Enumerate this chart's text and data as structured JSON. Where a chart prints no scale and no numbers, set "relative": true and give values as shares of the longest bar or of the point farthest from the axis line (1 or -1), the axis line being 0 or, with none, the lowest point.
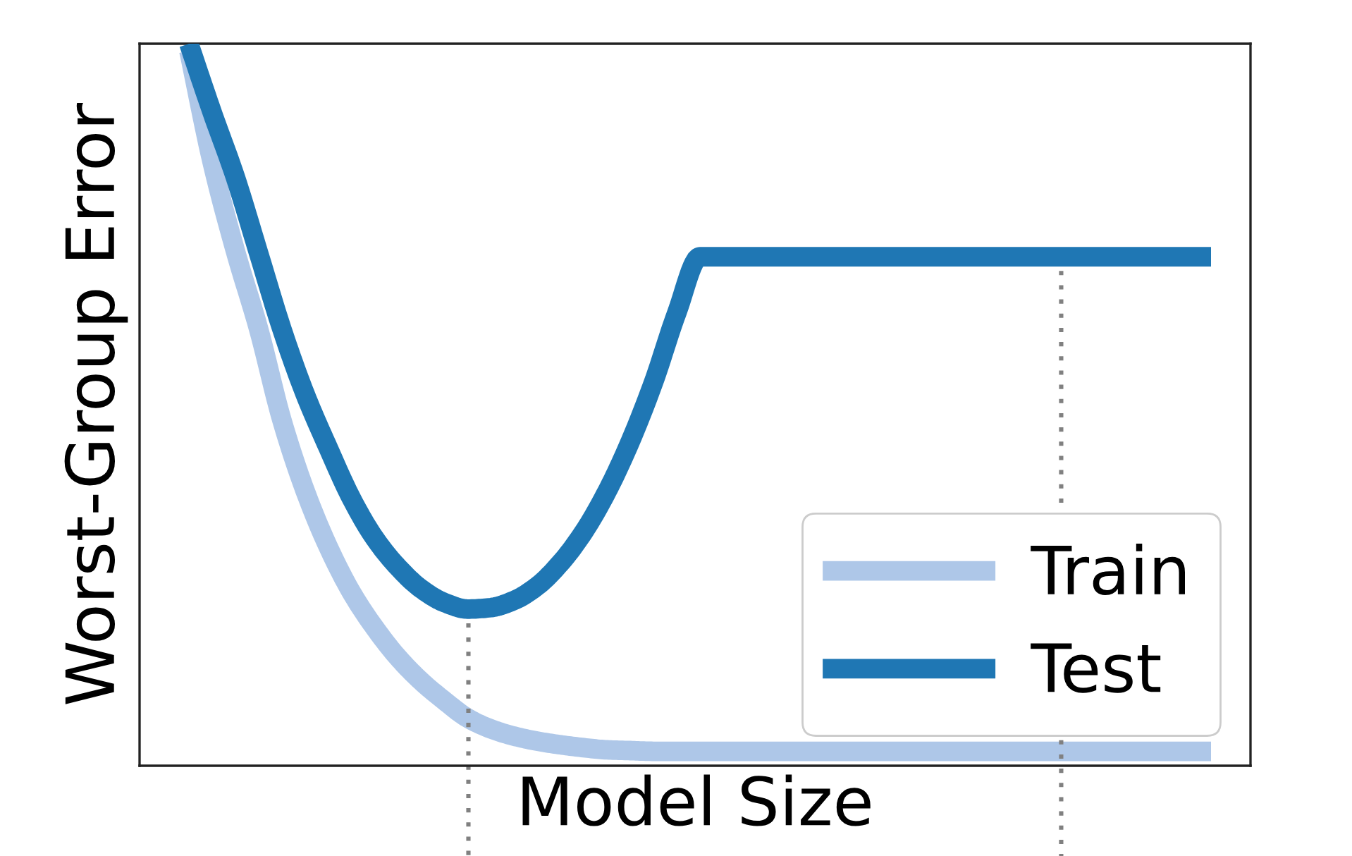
{
  "chart_data": {
    "type": "line",
    "xlabel": "Model Size",
    "ylabel": "Worst-Group Error",
    "relative": true,
    "line_style": "solid",
    "legend": "bottom right",
    "categories": [
      null,
      null,
      null,
      null,
      null,
      null,
      null,
      null,
      null,
      null,
      null,
      null,
      null,
      null,
      null,
      null,
      null,
      null,
      null,
      null,
      null,
      null,
      null,
      null,
      null,
      null,
      null,
      null,
      null,
      null,
      null,
      null,
      null,
      null,
      null,
      null,
      null,
      null,
      null,
      null,
      null,
      null,
      null,
      null,
      null
    ],
    "series": [
      {
        "name": "Train",
        "color": "#aec7e8",
        "values": [
          0.99,
          0.836,
          0.713,
          0.605,
          0.479,
          0.381,
          0.303,
          0.24,
          0.191,
          0.15,
          0.117,
          0.09,
          0.066,
          0.051,
          0.041,
          0.034,
          0.029,
          0.025,
          0.022,
          0.021,
          0.02,
          0.02,
          0.02,
          0.02,
          0.02,
          0.02,
          0.02,
          0.02,
          0.02,
          0.02,
          0.02,
          0.02,
          0.02,
          0.02,
          0.02,
          0.02,
          0.02,
          0.02,
          0.02,
          0.02,
          0.02,
          0.02,
          0.02,
          0.02,
          0.02
        ]
      },
      {
        "name": "Test",
        "color": "#1f77b4",
        "values": [
          1.0,
          0.905,
          0.815,
          0.71,
          0.605,
          0.515,
          0.44,
          0.37,
          0.315,
          0.275,
          0.245,
          0.226,
          0.217,
          0.219,
          0.229,
          0.249,
          0.281,
          0.324,
          0.38,
          0.449,
          0.531,
          0.627,
          0.705,
          0.705,
          0.705,
          0.705,
          0.705,
          0.705,
          0.705,
          0.705,
          0.705,
          0.705,
          0.705,
          0.705,
          0.705,
          0.705,
          0.705,
          0.705,
          0.705,
          0.705,
          0.705,
          0.705,
          0.705,
          0.705,
          0.705
        ]
      }
    ]
  }
}
